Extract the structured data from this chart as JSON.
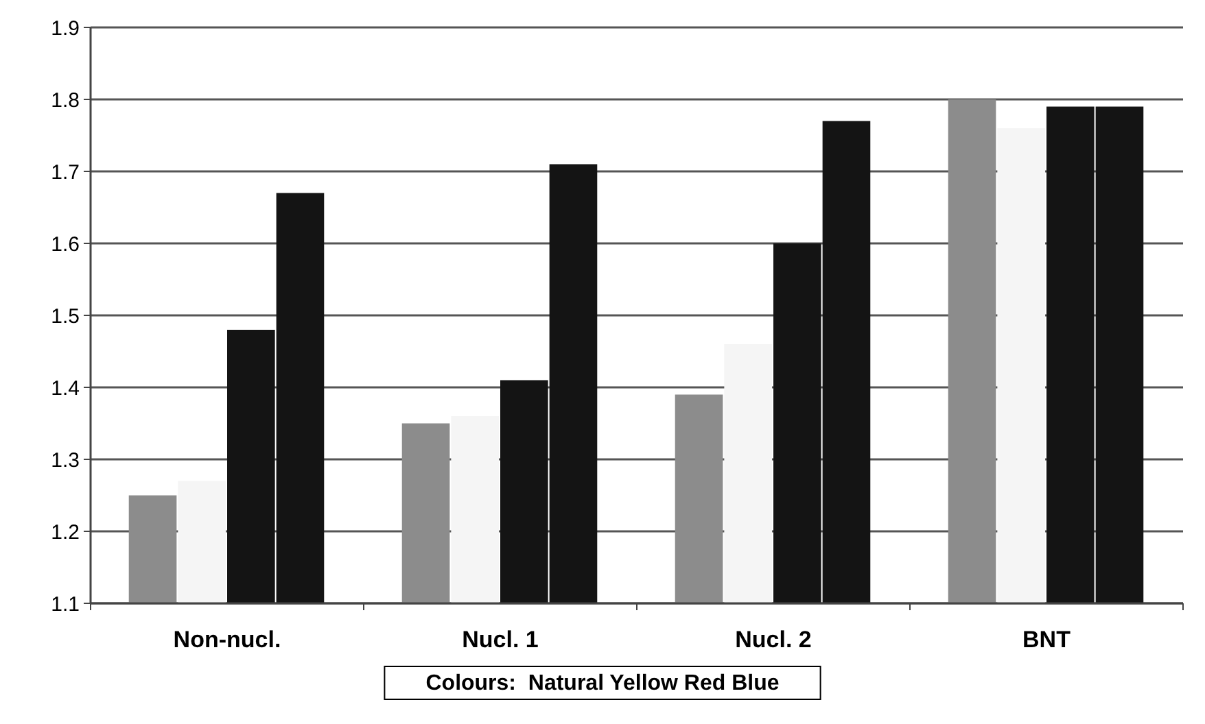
{
  "chart_data": {
    "type": "bar",
    "categories": [
      "Non-nucl.",
      "Nucl. 1",
      "Nucl. 2",
      "BNT"
    ],
    "series": [
      {
        "color": "#8c8c8c",
        "values": [
          1.25,
          1.35,
          1.39,
          1.8
        ]
      },
      {
        "color": "#f5f5f5",
        "values": [
          1.27,
          1.36,
          1.46,
          1.76
        ]
      },
      {
        "color": "#141414",
        "values": [
          1.48,
          1.41,
          1.6,
          1.79
        ]
      },
      {
        "color": "#141414",
        "values": [
          1.67,
          1.71,
          1.77,
          1.79
        ]
      }
    ],
    "ylim": [
      1.1,
      1.9
    ],
    "yticks": [
      1.1,
      1.2,
      1.3,
      1.4,
      1.5,
      1.6,
      1.7,
      1.8,
      1.9
    ],
    "grid": "y",
    "annotations": [
      "Colours:  Natural Yellow Red Blue"
    ]
  }
}
